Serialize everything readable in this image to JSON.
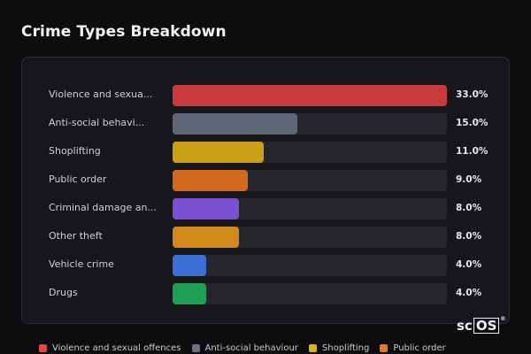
{
  "title": "Crime Types Breakdown",
  "chart_data": {
    "type": "bar",
    "orientation": "horizontal",
    "title": "Crime Types Breakdown",
    "xlim": [
      0,
      33
    ],
    "categories": [
      "Violence and sexual offences",
      "Anti-social behaviour",
      "Shoplifting",
      "Public order",
      "Criminal damage and arson",
      "Other theft",
      "Vehicle crime",
      "Drugs"
    ],
    "display_labels": [
      "Violence and sexua...",
      "Anti-social behavi...",
      "Shoplifting",
      "Public order",
      "Criminal damage an...",
      "Other theft",
      "Vehicle crime",
      "Drugs"
    ],
    "values": [
      33.0,
      15.0,
      11.0,
      9.0,
      8.0,
      8.0,
      4.0,
      4.0
    ],
    "value_labels": [
      "33.0%",
      "15.0%",
      "11.0%",
      "9.0%",
      "8.0%",
      "8.0%",
      "4.0%",
      "4.0%"
    ],
    "colors": [
      "#c93a3f",
      "#5f6675",
      "#c9a016",
      "#d2691e",
      "#7a4fd0",
      "#d08a1a",
      "#3a6fd6",
      "#1fa055"
    ],
    "legend_position": "bottom"
  },
  "legend": [
    {
      "label": "Violence and sexual offences",
      "color": "#e04848"
    },
    {
      "label": "Anti-social behaviour",
      "color": "#6b7280"
    },
    {
      "label": "Shoplifting",
      "color": "#e5b012"
    },
    {
      "label": "Public order",
      "color": "#e8772a"
    }
  ],
  "logo": {
    "left": "sc",
    "boxed": "OS",
    "mark": "®"
  }
}
